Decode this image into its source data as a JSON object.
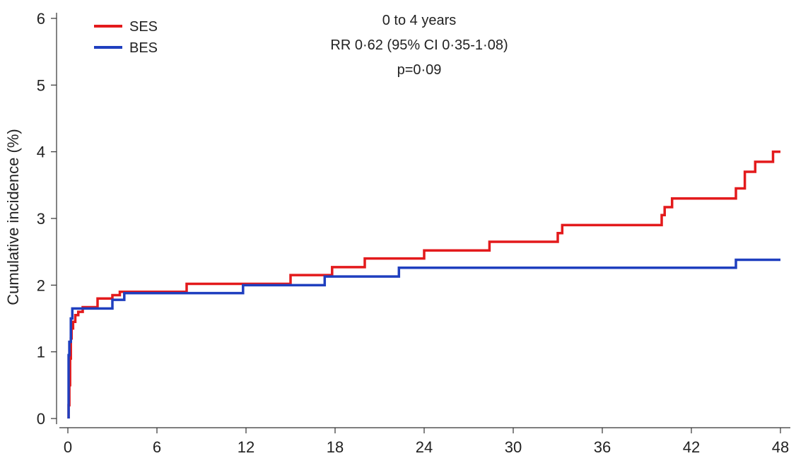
{
  "chart_data": {
    "type": "line",
    "line_shape": "step",
    "title": "",
    "xlabel": "",
    "ylabel": "Cumulative incidence (%)",
    "xlim": [
      0,
      48
    ],
    "ylim": [
      0,
      6
    ],
    "xticks": [
      0,
      6,
      12,
      18,
      24,
      30,
      36,
      42,
      48
    ],
    "yticks": [
      0,
      1,
      2,
      3,
      4,
      5,
      6
    ],
    "xtick_labels": [
      "0",
      "6",
      "12",
      "18",
      "24",
      "30",
      "36",
      "42",
      "48"
    ],
    "ytick_labels": [
      "0",
      "1",
      "2",
      "3",
      "4",
      "5",
      "6"
    ],
    "grid": false,
    "legend_position": "top-left",
    "annotations": [
      "0 to 4 years",
      "RR 0·62 (95% CI 0·35-1·08)",
      "p=0·09"
    ],
    "series": [
      {
        "name": "SES",
        "color": "#e31a1c",
        "x": [
          0.05,
          0.1,
          0.15,
          0.2,
          0.25,
          0.35,
          0.5,
          0.7,
          1.0,
          2.0,
          3.0,
          3.5,
          8.0,
          15.0,
          17.8,
          20.0,
          24.0,
          28.4,
          33.0,
          33.3,
          40.0,
          40.2,
          40.7,
          45.0,
          45.6,
          46.3,
          47.5,
          48.0
        ],
        "y": [
          0.2,
          0.5,
          0.9,
          1.2,
          1.35,
          1.45,
          1.55,
          1.6,
          1.67,
          1.8,
          1.85,
          1.9,
          2.02,
          2.15,
          2.27,
          2.4,
          2.52,
          2.65,
          2.78,
          2.9,
          3.05,
          3.17,
          3.3,
          3.45,
          3.7,
          3.85,
          4.0,
          4.0
        ]
      },
      {
        "name": "BES",
        "color": "#1f3fbf",
        "x": [
          0.05,
          0.1,
          0.2,
          0.3,
          3.0,
          3.8,
          11.8,
          17.3,
          22.3,
          45.0,
          48.0
        ],
        "y": [
          0.95,
          1.15,
          1.5,
          1.65,
          1.78,
          1.88,
          2.0,
          2.13,
          2.26,
          2.38,
          2.38
        ]
      }
    ]
  }
}
